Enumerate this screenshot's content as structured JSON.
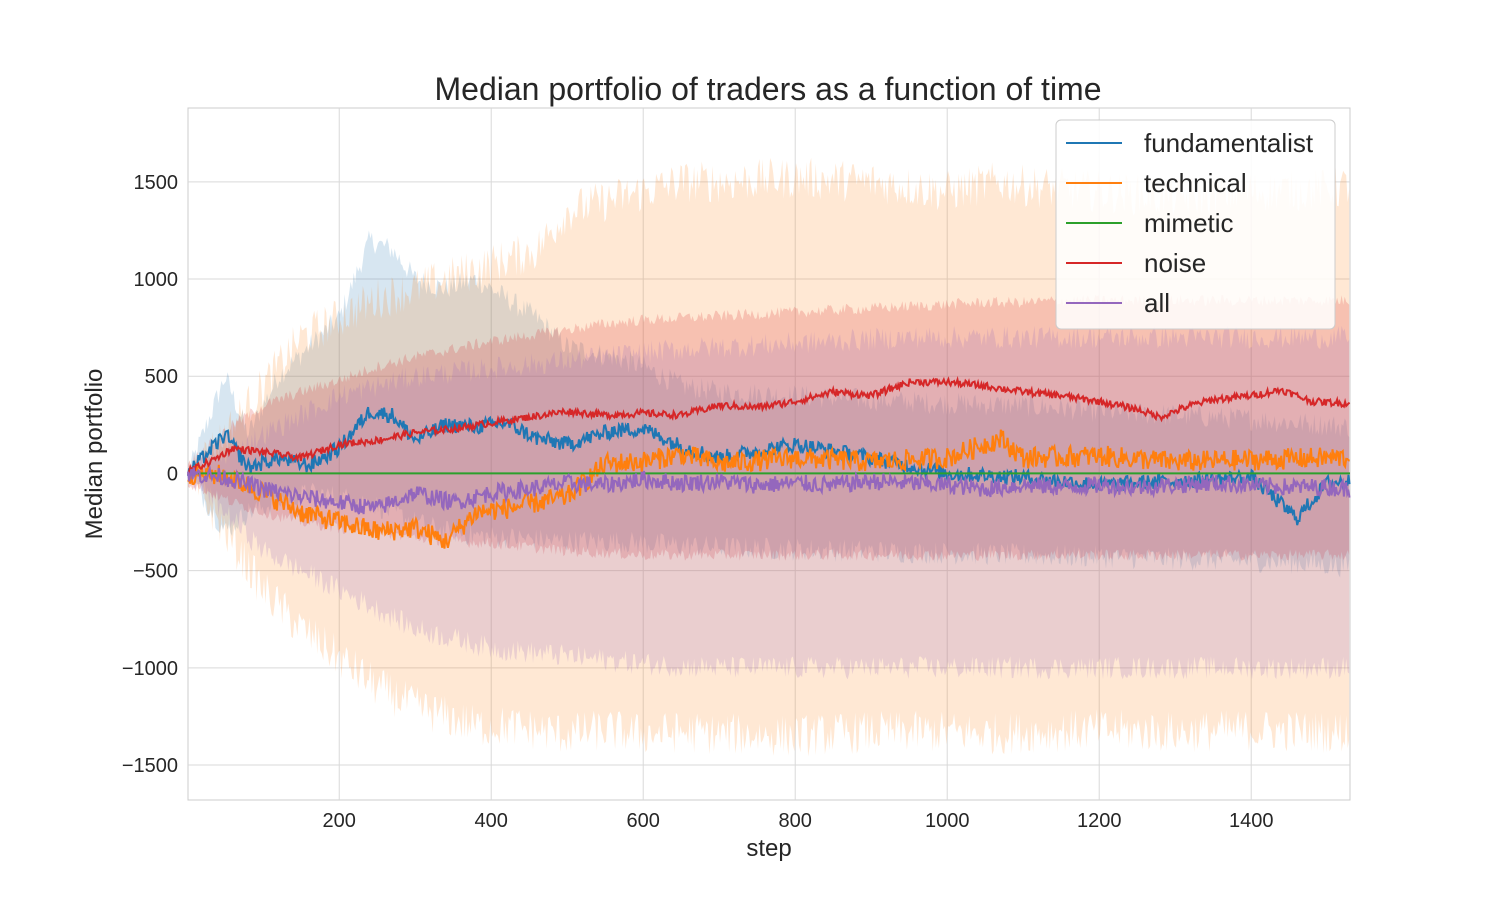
{
  "chart_data": {
    "type": "line",
    "title": "Median portfolio of traders as a function of time",
    "xlabel": "step",
    "ylabel": "Median portfolio",
    "xlim": [
      1,
      1530
    ],
    "ylim": [
      -1680,
      1880
    ],
    "xticks": [
      200,
      400,
      600,
      800,
      1000,
      1200,
      1400
    ],
    "xtick_labels": [
      "200",
      "400",
      "600",
      "800",
      "1000",
      "1200",
      "1400"
    ],
    "yticks": [
      1500,
      1000,
      500,
      0,
      -500,
      -1000,
      -1500
    ],
    "ytick_labels": [
      "1500",
      "1000",
      "500",
      "0",
      "−500",
      "−1000",
      "−1500"
    ],
    "grid": true,
    "legend_position": "top-right",
    "series": [
      {
        "name": "fundamentalist",
        "color": "#1f77b4",
        "x": [
          1,
          50,
          80,
          120,
          160,
          200,
          240,
          270,
          300,
          340,
          380,
          420,
          460,
          500,
          560,
          600,
          650,
          700,
          800,
          900,
          1000,
          1100,
          1200,
          1300,
          1400,
          1460,
          1500,
          1530
        ],
        "median": [
          0,
          200,
          30,
          80,
          40,
          130,
          320,
          300,
          170,
          250,
          240,
          260,
          180,
          150,
          220,
          230,
          140,
          80,
          150,
          80,
          0,
          -20,
          -60,
          -40,
          -20,
          -230,
          -50,
          -40
        ],
        "band_upper": [
          0,
          500,
          200,
          500,
          650,
          800,
          1200,
          1150,
          1000,
          950,
          1000,
          900,
          800,
          650,
          600,
          550,
          450,
          420,
          400,
          380,
          360,
          350,
          320,
          300,
          280,
          260,
          250,
          240
        ],
        "band_lower": [
          0,
          -300,
          -200,
          -150,
          -100,
          -120,
          -150,
          -200,
          -250,
          -300,
          -320,
          -330,
          -340,
          -350,
          -350,
          -360,
          -370,
          -380,
          -390,
          -400,
          -410,
          -420,
          -430,
          -440,
          -450,
          -460,
          -470,
          -480
        ]
      },
      {
        "name": "technical",
        "color": "#ff7f0e",
        "x": [
          1,
          50,
          100,
          150,
          200,
          250,
          300,
          340,
          380,
          420,
          460,
          500,
          550,
          600,
          650,
          700,
          800,
          900,
          1000,
          1070,
          1100,
          1200,
          1300,
          1400,
          1500,
          1530
        ],
        "median": [
          0,
          -10,
          -100,
          -200,
          -250,
          -300,
          -280,
          -350,
          -200,
          -180,
          -150,
          -120,
          50,
          60,
          100,
          50,
          80,
          60,
          80,
          180,
          80,
          90,
          60,
          70,
          80,
          80
        ],
        "band_upper": [
          0,
          200,
          450,
          700,
          800,
          900,
          950,
          1000,
          1050,
          1100,
          1150,
          1350,
          1400,
          1450,
          1500,
          1500,
          1520,
          1500,
          1450,
          1500,
          1480,
          1450,
          1420,
          1450,
          1460,
          1480
        ],
        "band_lower": [
          0,
          -300,
          -600,
          -800,
          -950,
          -1100,
          -1200,
          -1250,
          -1300,
          -1300,
          -1320,
          -1340,
          -1320,
          -1340,
          -1330,
          -1340,
          -1350,
          -1330,
          -1330,
          -1340,
          -1330,
          -1320,
          -1330,
          -1320,
          -1330,
          -1330
        ]
      },
      {
        "name": "mimetic",
        "color": "#2ca02c",
        "x": [
          1,
          1530
        ],
        "median": [
          0,
          0
        ]
      },
      {
        "name": "noise",
        "color": "#d62728",
        "x": [
          1,
          30,
          60,
          100,
          150,
          200,
          250,
          300,
          350,
          400,
          450,
          500,
          550,
          600,
          650,
          700,
          750,
          800,
          850,
          900,
          950,
          1000,
          1050,
          1100,
          1150,
          1200,
          1250,
          1280,
          1320,
          1350,
          1400,
          1440,
          1480,
          1530
        ],
        "median": [
          10,
          60,
          130,
          110,
          80,
          150,
          170,
          210,
          230,
          260,
          290,
          320,
          300,
          310,
          300,
          350,
          340,
          370,
          420,
          400,
          470,
          470,
          450,
          420,
          400,
          370,
          330,
          290,
          350,
          380,
          400,
          430,
          370,
          360
        ],
        "band_upper": [
          50,
          150,
          250,
          350,
          420,
          480,
          550,
          600,
          640,
          680,
          710,
          740,
          770,
          790,
          800,
          810,
          820,
          830,
          840,
          850,
          860,
          870,
          880,
          880,
          890,
          890,
          890,
          890,
          890,
          890,
          890,
          890,
          890,
          890
        ],
        "band_lower": [
          -50,
          -100,
          -150,
          -200,
          -250,
          -280,
          -300,
          -330,
          -350,
          -360,
          -380,
          -400,
          -410,
          -420,
          -420,
          -420,
          -420,
          -420,
          -420,
          -420,
          -420,
          -420,
          -420,
          -420,
          -420,
          -420,
          -420,
          -420,
          -420,
          -420,
          -420,
          -420,
          -420,
          -420
        ]
      },
      {
        "name": "all",
        "color": "#9467bd",
        "x": [
          1,
          50,
          100,
          150,
          200,
          250,
          300,
          350,
          400,
          450,
          500,
          550,
          600,
          650,
          700,
          750,
          800,
          850,
          900,
          950,
          1000,
          1050,
          1100,
          1150,
          1200,
          1250,
          1300,
          1350,
          1400,
          1450,
          1500,
          1530
        ],
        "median": [
          0,
          -20,
          -80,
          -120,
          -150,
          -180,
          -100,
          -150,
          -100,
          -80,
          -50,
          -60,
          -30,
          -50,
          -40,
          -60,
          -50,
          -60,
          -40,
          -50,
          -60,
          -80,
          -60,
          -70,
          -60,
          -70,
          -60,
          -50,
          -60,
          -70,
          -70,
          -80
        ],
        "band_upper": [
          0,
          100,
          200,
          300,
          400,
          450,
          500,
          520,
          540,
          560,
          580,
          600,
          620,
          640,
          650,
          660,
          670,
          680,
          690,
          700,
          700,
          700,
          700,
          700,
          700,
          700,
          700,
          700,
          700,
          700,
          700,
          700
        ],
        "band_lower": [
          0,
          -200,
          -400,
          -500,
          -600,
          -700,
          -800,
          -850,
          -900,
          -920,
          -940,
          -960,
          -980,
          -990,
          -1000,
          -1000,
          -1000,
          -1000,
          -1000,
          -1000,
          -1000,
          -1000,
          -1000,
          -1000,
          -1000,
          -1000,
          -1000,
          -1000,
          -1000,
          -1000,
          -1000,
          -1000
        ]
      }
    ]
  }
}
